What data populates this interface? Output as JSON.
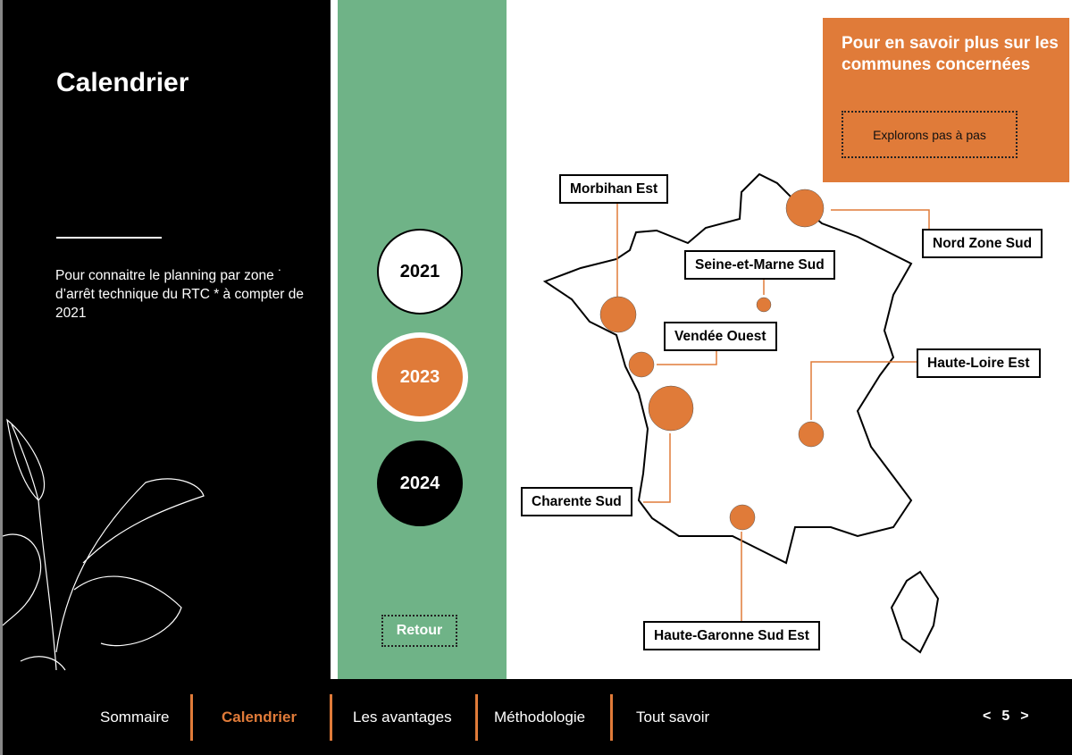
{
  "sidebar": {
    "title": "Calendrier",
    "description": "Pour connaitre le planning par zone ˙ d’arrêt technique du RTC * à compter de 2021"
  },
  "years": [
    {
      "label": "2021"
    },
    {
      "label": "2023",
      "selected": true
    },
    {
      "label": "2024"
    }
  ],
  "back_label": "Retour",
  "info": {
    "title": "Pour en savoir plus sur les communes concernées",
    "button": "Explorons pas à pas"
  },
  "zones": [
    "Morbihan Est",
    "Nord Zone Sud",
    "Seine-et-Marne Sud",
    "Vendée Ouest",
    "Haute-Loire Est",
    "Charente Sud",
    "Haute-Garonne Sud Est"
  ],
  "nav": {
    "items": [
      "Sommaire",
      "Calendrier",
      "Les avantages",
      "Méthodologie",
      "Tout savoir"
    ],
    "active": "Calendrier",
    "page": "5",
    "prev": "<",
    "next": ">"
  },
  "colors": {
    "accent": "#e07b39",
    "green": "#6fb387"
  }
}
